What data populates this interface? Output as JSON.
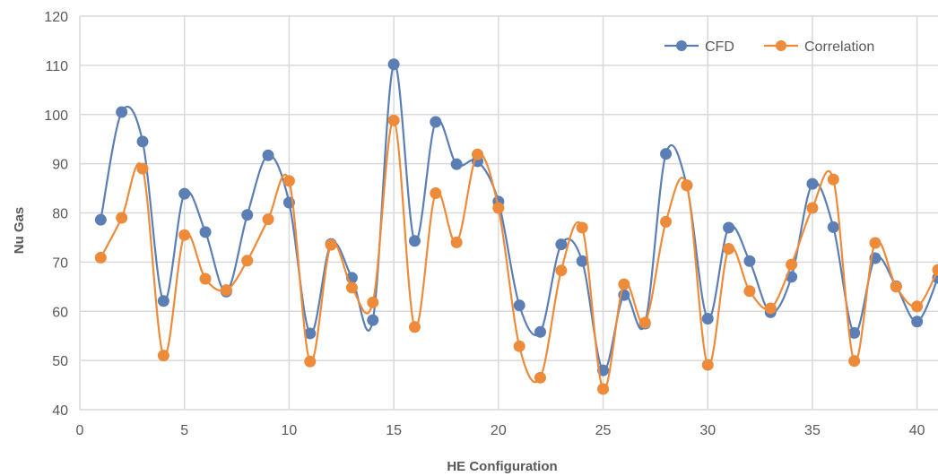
{
  "chart_data": {
    "type": "line",
    "title": "",
    "xlabel": "HE Configuration",
    "ylabel": "Nu Gas",
    "xlim": [
      0,
      41
    ],
    "ylim": [
      40,
      120
    ],
    "x_ticks": [
      0,
      5,
      10,
      15,
      20,
      25,
      30,
      35,
      40
    ],
    "y_ticks": [
      40,
      50,
      60,
      70,
      80,
      90,
      100,
      110,
      120
    ],
    "grid": true,
    "smooth": true,
    "legend_position": "top-right",
    "series": [
      {
        "name": "CFD",
        "color": "#5B7FB5",
        "x": [
          1,
          2,
          3,
          4,
          5,
          6,
          7,
          8,
          9,
          10,
          11,
          12,
          13,
          14,
          15,
          16,
          17,
          18,
          19,
          20,
          21,
          22,
          23,
          24,
          25,
          26,
          27,
          28,
          29,
          30,
          31,
          32,
          33,
          34,
          35,
          36,
          37,
          38,
          39,
          40,
          41
        ],
        "values": [
          78.6,
          100.5,
          94.5,
          62.1,
          83.9,
          76.1,
          64.0,
          79.6,
          91.7,
          82.1,
          55.5,
          73.7,
          66.8,
          58.2,
          110.2,
          74.3,
          98.5,
          89.9,
          90.5,
          82.3,
          61.2,
          55.8,
          73.6,
          70.2,
          48.0,
          63.3,
          57.5,
          92.0,
          85.6,
          58.5,
          77.0,
          70.2,
          59.8,
          67.0,
          85.9,
          77.1,
          55.6,
          70.8,
          65.1,
          57.9,
          66.8
        ]
      },
      {
        "name": "Correlation",
        "color": "#ED8B3A",
        "x": [
          1,
          2,
          3,
          4,
          5,
          6,
          7,
          8,
          9,
          10,
          11,
          12,
          13,
          14,
          15,
          16,
          17,
          18,
          19,
          20,
          21,
          22,
          23,
          24,
          25,
          26,
          27,
          28,
          29,
          30,
          31,
          32,
          33,
          34,
          35,
          36,
          37,
          38,
          39,
          40,
          41
        ],
        "values": [
          70.9,
          79.0,
          89.0,
          51.0,
          75.5,
          66.6,
          64.3,
          70.3,
          78.7,
          86.5,
          49.8,
          73.5,
          64.8,
          61.8,
          98.8,
          56.8,
          84.0,
          74.0,
          91.9,
          81.0,
          52.9,
          46.5,
          68.3,
          77.0,
          44.2,
          65.5,
          57.7,
          78.2,
          85.6,
          49.1,
          72.7,
          64.1,
          60.6,
          69.5,
          81.0,
          86.8,
          49.9,
          73.9,
          65.0,
          61.0,
          68.4
        ]
      }
    ]
  }
}
